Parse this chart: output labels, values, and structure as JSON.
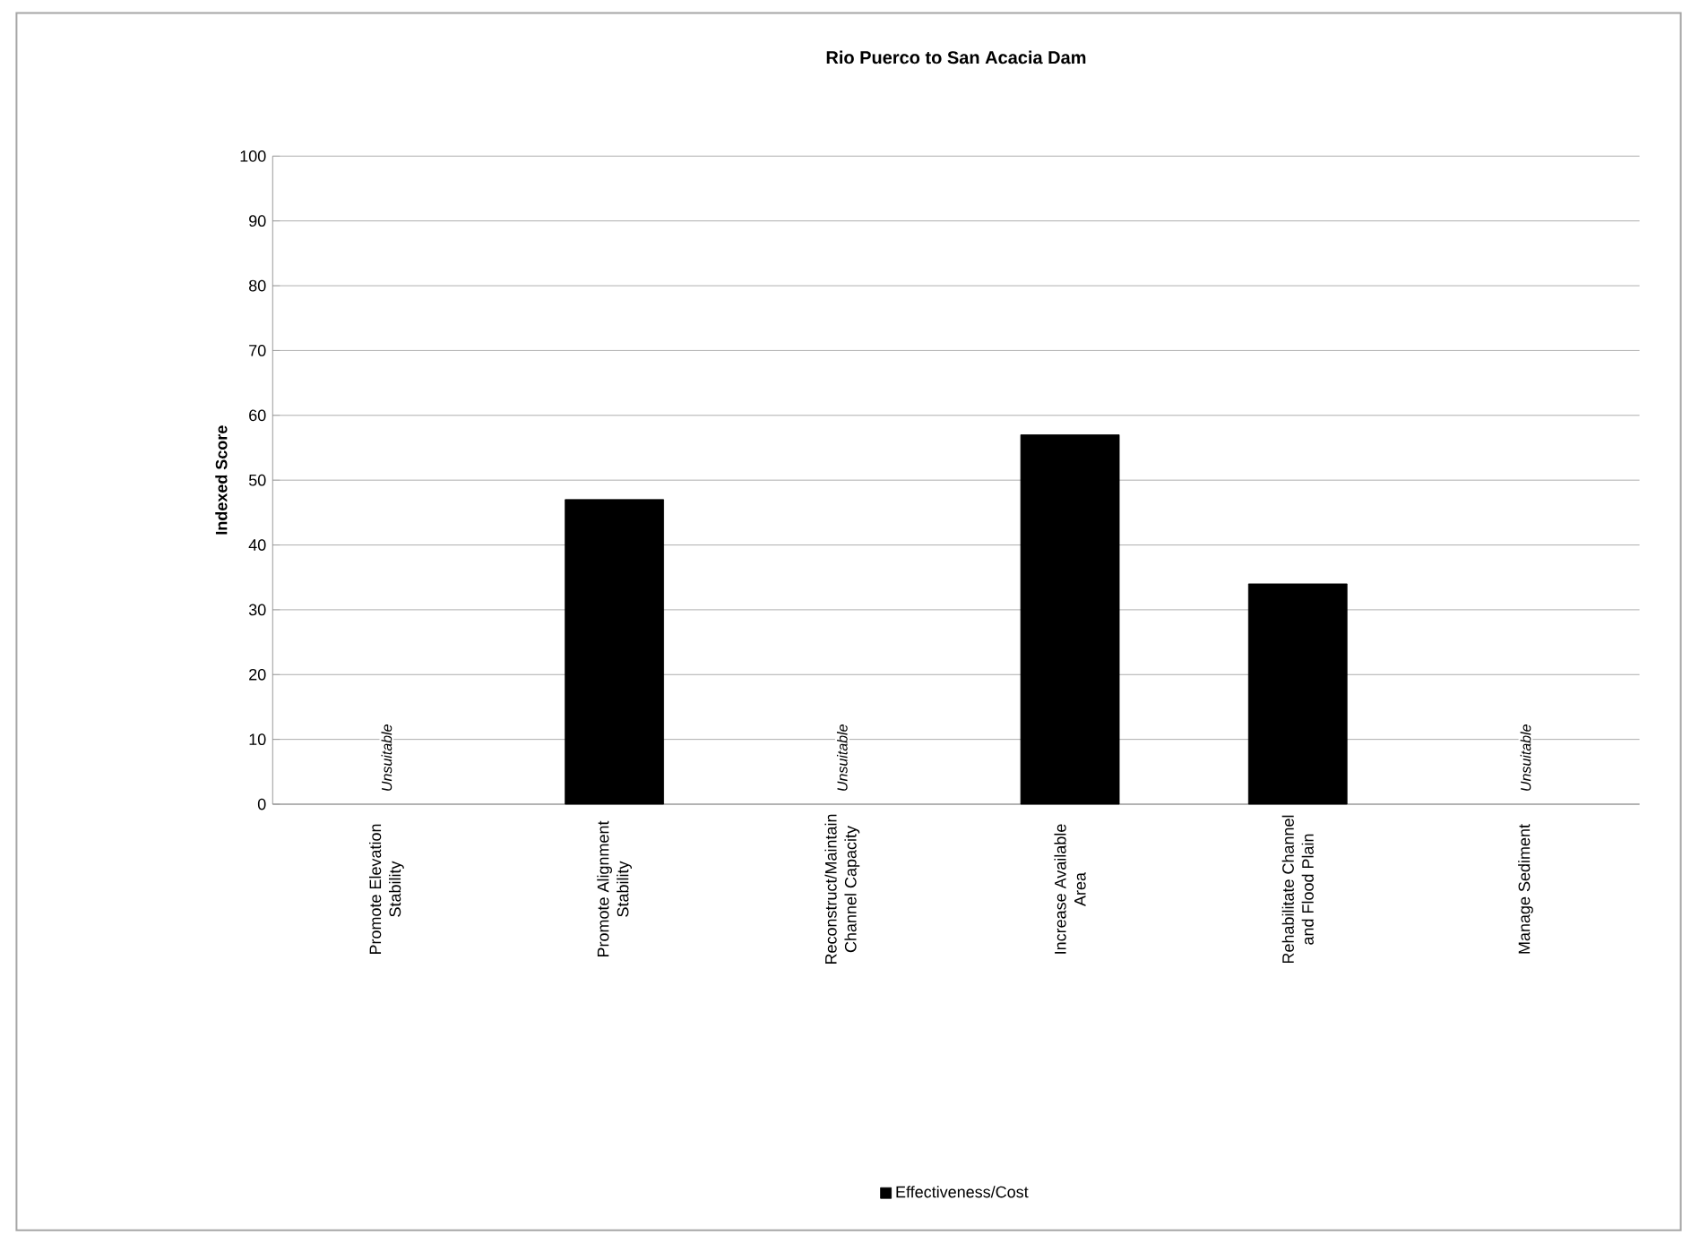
{
  "chart_data": {
    "type": "bar",
    "title": "Rio Puerco to San Acacia Dam",
    "ylabel": "Indexed Score",
    "categories": [
      "Promote Elevation Stability",
      "Promote Alignment Stability",
      "Reconstruct/Maintain Channel Capacity",
      "Increase Available Area",
      "Rehabilitate Channel and Flood Plain",
      "Manage Sediment"
    ],
    "series": [
      {
        "name": "Effectiveness/Cost",
        "color": "#000000",
        "values": [
          null,
          47,
          null,
          57,
          34,
          null
        ]
      }
    ],
    "ylim": [
      0,
      100
    ],
    "yticks": [
      0,
      10,
      20,
      30,
      40,
      50,
      60,
      70,
      80,
      90,
      100
    ],
    "grid": "y",
    "legend": "bottom",
    "annotations": [
      "Unsuitable",
      "Unsuitable",
      "Unsuitable"
    ]
  }
}
